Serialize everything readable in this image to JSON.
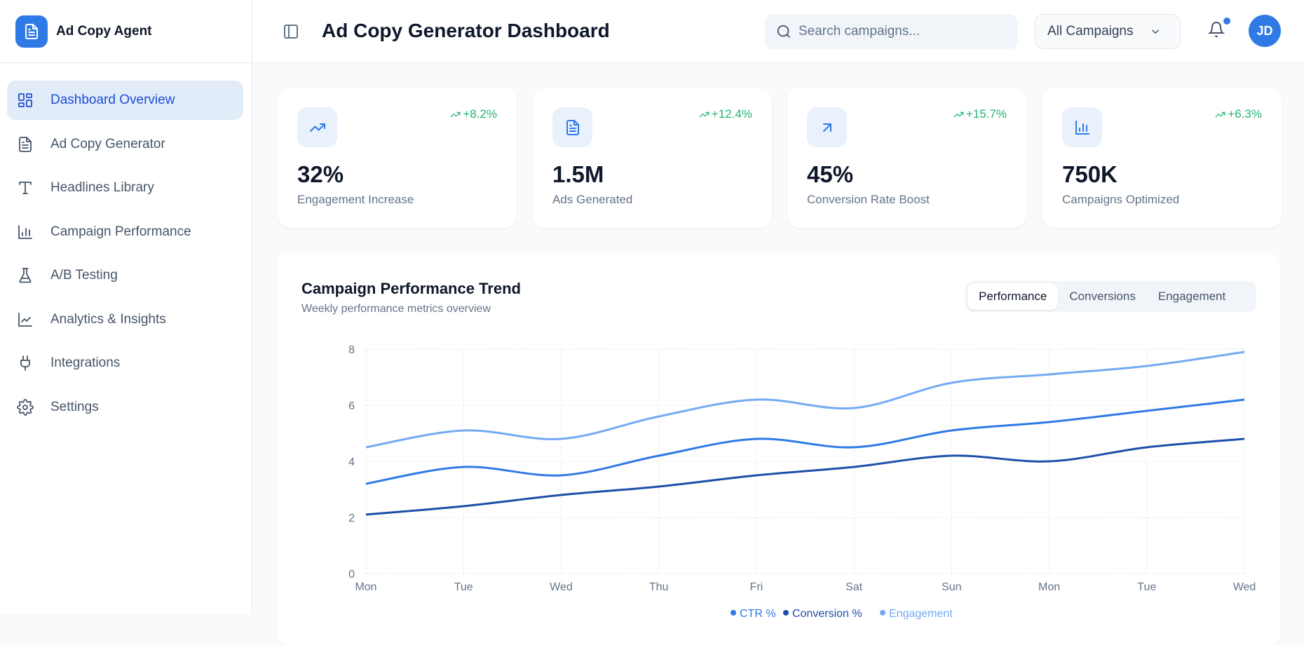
{
  "brand": {
    "name": "Ad Copy Agent",
    "logo_icon": "file-text-icon"
  },
  "sidebar": {
    "items": [
      {
        "label": "Dashboard Overview",
        "icon": "grid-icon",
        "active": true
      },
      {
        "label": "Ad Copy Generator",
        "icon": "file-text-icon"
      },
      {
        "label": "Headlines Library",
        "icon": "type-icon"
      },
      {
        "label": "Campaign Performance",
        "icon": "bar-chart-icon"
      },
      {
        "label": "A/B Testing",
        "icon": "flask-icon"
      },
      {
        "label": "Analytics & Insights",
        "icon": "line-chart-icon"
      },
      {
        "label": "Integrations",
        "icon": "plug-icon"
      },
      {
        "label": "Settings",
        "icon": "gear-icon"
      }
    ]
  },
  "header": {
    "title": "Ad Copy Generator Dashboard",
    "search_placeholder": "Search campaigns...",
    "filter": "All Campaigns",
    "avatar": "JD"
  },
  "stats": [
    {
      "value": "32%",
      "label": "Engagement Increase",
      "change": "+8.2%",
      "icon": "trending-up-icon"
    },
    {
      "value": "1.5M",
      "label": "Ads Generated",
      "change": "+12.4%",
      "icon": "file-text-icon"
    },
    {
      "value": "45%",
      "label": "Conversion Rate Boost",
      "change": "+15.7%",
      "icon": "arrow-up-right-icon"
    },
    {
      "value": "750K",
      "label": "Campaigns Optimized",
      "change": "+6.3%",
      "icon": "bar-chart-icon"
    }
  ],
  "colors": {
    "accent": "#2f7ae5",
    "positive": "#22b573"
  },
  "chart_card": {
    "title": "Campaign Performance Trend",
    "subtitle": "Weekly performance metrics overview",
    "tabs": [
      "Performance",
      "Conversions",
      "Engagement"
    ],
    "active_tab": "Performance"
  },
  "chart_data": {
    "type": "line",
    "categories": [
      "Mon",
      "Tue",
      "Wed",
      "Thu",
      "Fri",
      "Sat",
      "Sun",
      "Mon",
      "Tue",
      "Wed"
    ],
    "ylim": [
      0,
      8
    ],
    "yticks": [
      0,
      2,
      4,
      6,
      8
    ],
    "grid": true,
    "legend": "bottom",
    "series": [
      {
        "name": "CTR %",
        "color": "#2f7ae5",
        "values": [
          3.2,
          3.8,
          3.5,
          4.2,
          4.8,
          4.5,
          5.1,
          5.4,
          5.8,
          6.2
        ]
      },
      {
        "name": "Conversion %",
        "color": "#1e4fa8",
        "values": [
          2.1,
          2.4,
          2.8,
          3.1,
          3.5,
          3.8,
          4.2,
          4.0,
          4.5,
          4.8
        ]
      },
      {
        "name": "Engagement",
        "color": "#74aaf2",
        "values": [
          4.5,
          5.1,
          4.8,
          5.6,
          6.2,
          5.9,
          6.8,
          7.1,
          7.4,
          7.9
        ]
      }
    ]
  }
}
